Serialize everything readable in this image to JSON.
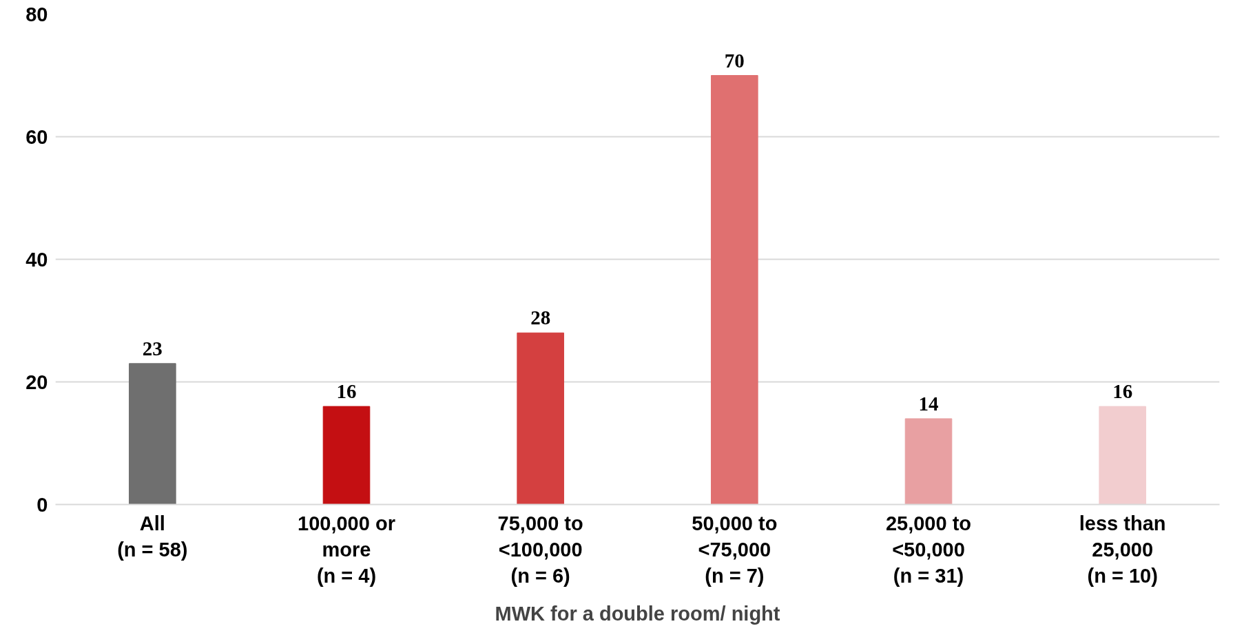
{
  "chart_data": {
    "type": "bar",
    "xlabel": "MWK for a double room/ night",
    "categories": [
      "All\n(n = 58)",
      "100,000 or\nmore\n(n = 4)",
      "75,000 to\n<100,000\n(n = 6)",
      "50,000 to\n<75,000\n(n = 7)",
      "25,000 to\n<50,000\n(n = 31)",
      "less than\n25,000\n(n = 10)"
    ],
    "values": [
      23,
      16,
      28,
      70,
      14,
      16
    ],
    "colors": [
      "#6f6f6f",
      "#c40f12",
      "#d44040",
      "#e07070",
      "#e8a0a2",
      "#f2cdcf"
    ],
    "ylim": [
      0,
      80
    ],
    "yticks": [
      0,
      20,
      40,
      60,
      80
    ],
    "grid": "y",
    "data_labels": true
  }
}
